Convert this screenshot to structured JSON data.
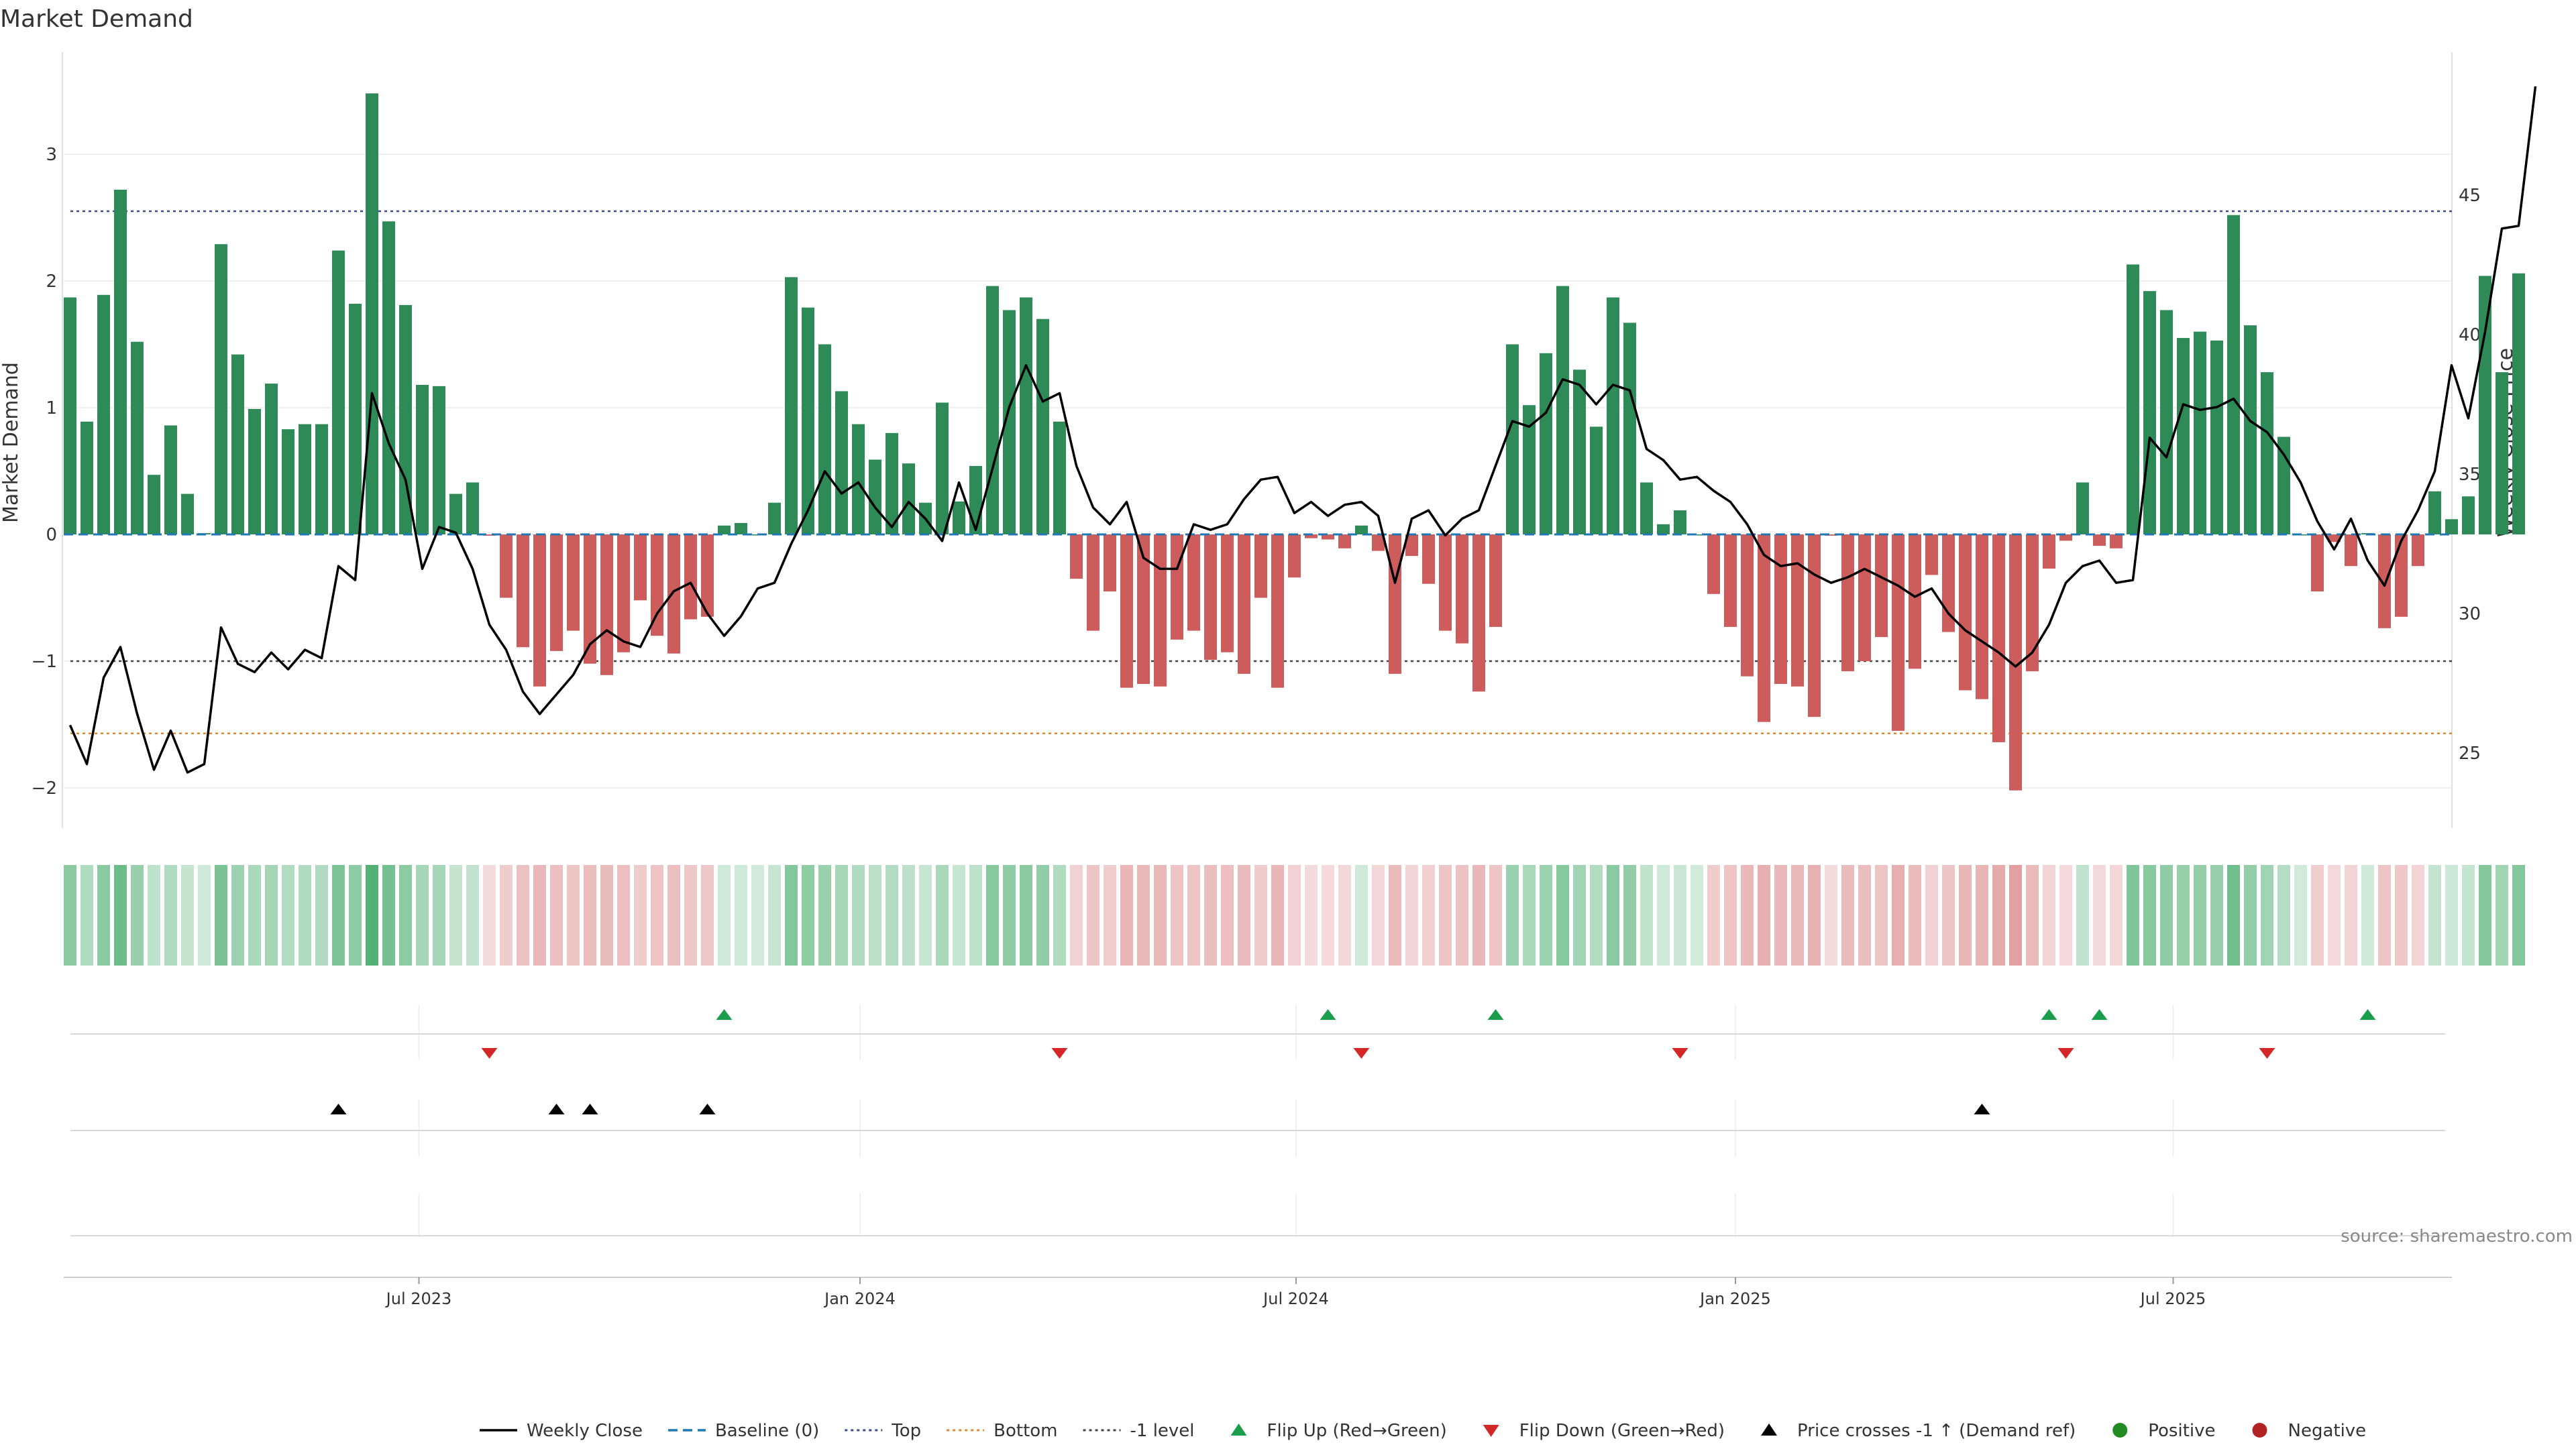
{
  "chart_data": {
    "type": "bar",
    "title": "Market Demand",
    "ylabel": "Market Demand",
    "y2label": "Weekly Close Price",
    "ylim": [
      -2.33,
      3.58
    ],
    "y2lim": [
      23.15,
      49.0
    ],
    "yticks": [
      "3",
      "2",
      "1",
      "0",
      "−1",
      "−2"
    ],
    "y2ticks": [
      "45",
      "40",
      "35",
      "30",
      "25"
    ],
    "xticks": [
      "Jul 2023",
      "Jan 2024",
      "Jul 2024",
      "Jan 2025",
      "Jul 2025"
    ],
    "source": "source: sharemaestro.com",
    "levels": {
      "top": 2.55,
      "bottom": -1.57,
      "minus_one": -1.0,
      "baseline": 0
    },
    "demand": [
      1.87,
      0.89,
      1.89,
      2.72,
      1.52,
      0.47,
      0.86,
      0.32,
      0.01,
      2.29,
      1.42,
      0.99,
      1.19,
      0.83,
      0.87,
      0.87,
      2.24,
      1.82,
      3.48,
      2.47,
      1.81,
      1.18,
      1.17,
      0.32,
      0.41,
      -0.01,
      -0.5,
      -0.89,
      -1.2,
      -0.92,
      -0.76,
      -1.02,
      -1.11,
      -0.93,
      -0.52,
      -0.8,
      -0.94,
      -0.67,
      -0.65,
      0.07,
      0.09,
      0.0,
      0.25,
      2.03,
      1.79,
      1.5,
      1.13,
      0.87,
      0.59,
      0.8,
      0.56,
      0.25,
      1.04,
      0.26,
      0.54,
      1.96,
      1.77,
      1.87,
      1.7,
      0.89,
      -0.35,
      -0.76,
      -0.45,
      -1.21,
      -1.18,
      -1.2,
      -0.83,
      -0.76,
      -0.99,
      -0.93,
      -1.1,
      -0.5,
      -1.21,
      -0.34,
      -0.03,
      -0.04,
      -0.11,
      0.07,
      -0.13,
      -1.1,
      -0.17,
      -0.39,
      -0.76,
      -0.86,
      -1.24,
      -0.73,
      1.5,
      1.02,
      1.43,
      1.96,
      1.3,
      0.85,
      1.87,
      1.67,
      0.41,
      0.08,
      0.19,
      0.0,
      -0.47,
      -0.73,
      -1.12,
      -1.48,
      -1.18,
      -1.2,
      -1.44,
      -0.01,
      -1.08,
      -1.0,
      -0.81,
      -1.55,
      -1.06,
      -0.32,
      -0.77,
      -1.23,
      -1.3,
      -1.64,
      -2.02,
      -1.08,
      -0.27,
      -0.05,
      0.41,
      -0.09,
      -0.11,
      2.13,
      1.92,
      1.77,
      1.55,
      1.6,
      1.53,
      2.52,
      1.65,
      1.28,
      0.77,
      0.0,
      -0.45,
      -0.06,
      -0.25,
      0.01,
      -0.74,
      -0.65,
      -0.25,
      0.34,
      0.12,
      0.3,
      2.04,
      1.28,
      2.06
    ],
    "weekly_close": [
      26.0,
      24.6,
      27.7,
      28.8,
      26.4,
      24.4,
      25.8,
      24.3,
      24.6,
      29.5,
      28.2,
      27.9,
      28.6,
      28.0,
      28.7,
      28.4,
      31.7,
      31.2,
      37.9,
      36.1,
      34.8,
      31.6,
      33.1,
      32.9,
      31.6,
      29.6,
      28.7,
      27.2,
      26.4,
      27.1,
      27.8,
      28.9,
      29.4,
      29.0,
      28.8,
      30.0,
      30.8,
      31.1,
      30.0,
      29.2,
      29.9,
      30.9,
      31.1,
      32.5,
      33.7,
      35.1,
      34.3,
      34.7,
      33.8,
      33.1,
      34.0,
      33.4,
      32.6,
      34.7,
      33.0,
      35.2,
      37.4,
      38.9,
      37.6,
      37.9,
      35.3,
      33.8,
      33.2,
      34.0,
      32.0,
      31.6,
      31.6,
      33.2,
      33.0,
      33.2,
      34.1,
      34.8,
      34.9,
      33.6,
      34.0,
      33.5,
      33.9,
      34.0,
      33.5,
      31.1,
      33.4,
      33.7,
      32.8,
      33.4,
      33.7,
      35.3,
      36.9,
      36.7,
      37.2,
      38.4,
      38.2,
      37.5,
      38.2,
      38.0,
      35.9,
      35.5,
      34.8,
      34.9,
      34.4,
      34.0,
      33.2,
      32.1,
      31.7,
      31.8,
      31.4,
      31.1,
      31.3,
      31.6,
      31.3,
      31.0,
      30.6,
      30.9,
      30.0,
      29.4,
      29.0,
      28.6,
      28.1,
      28.6,
      29.6,
      31.1,
      31.7,
      31.9,
      31.1,
      31.2,
      36.3,
      35.6,
      37.5,
      37.3,
      37.4,
      37.7,
      36.9,
      36.5,
      35.7,
      34.7,
      33.3,
      32.3,
      33.4,
      31.9,
      31.0,
      32.6,
      33.7,
      35.1,
      38.9,
      37.0,
      40.1,
      43.8,
      43.9,
      48.9
    ],
    "flip_up": [
      39,
      75,
      85,
      118,
      121,
      137
    ],
    "flip_down": [
      25,
      59,
      77,
      96,
      119,
      131
    ],
    "price_cross": [
      16,
      29,
      31,
      38,
      114
    ],
    "series": [
      {
        "name": "Weekly Close",
        "color": "#000000"
      },
      {
        "name": "Baseline (0)",
        "color": "#1f77b4"
      },
      {
        "name": "Top",
        "color": "#3a4a8a"
      },
      {
        "name": "Bottom",
        "color": "#e08a2c"
      },
      {
        "name": "-1 level",
        "color": "#444444"
      },
      {
        "name": "Flip Up (Red→Green)",
        "color": "#1a9e4c"
      },
      {
        "name": "Flip Down (Green→Red)",
        "color": "#d62728"
      },
      {
        "name": "Price crosses -1 ↑ (Demand ref)",
        "color": "#000000"
      },
      {
        "name": "Positive",
        "color": "#228b22"
      },
      {
        "name": "Negative",
        "color": "#b22222"
      }
    ],
    "colors": {
      "positive_bar": "#2e8b57",
      "negative_bar": "#cd5c5c"
    }
  }
}
